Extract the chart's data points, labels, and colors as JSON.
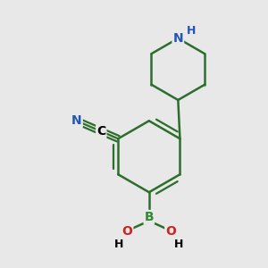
{
  "background_color": "#e8e8e8",
  "bond_color": "#2d6e2d",
  "nitrogen_color": "#2255bb",
  "boron_color": "#2e8b2e",
  "oxygen_color": "#cc2222",
  "carbon_label_color": "#000000",
  "line_width": 1.8,
  "figsize": [
    3.0,
    3.0
  ],
  "dpi": 100,
  "xlim": [
    -3.0,
    3.0
  ],
  "ylim": [
    -3.5,
    3.5
  ]
}
